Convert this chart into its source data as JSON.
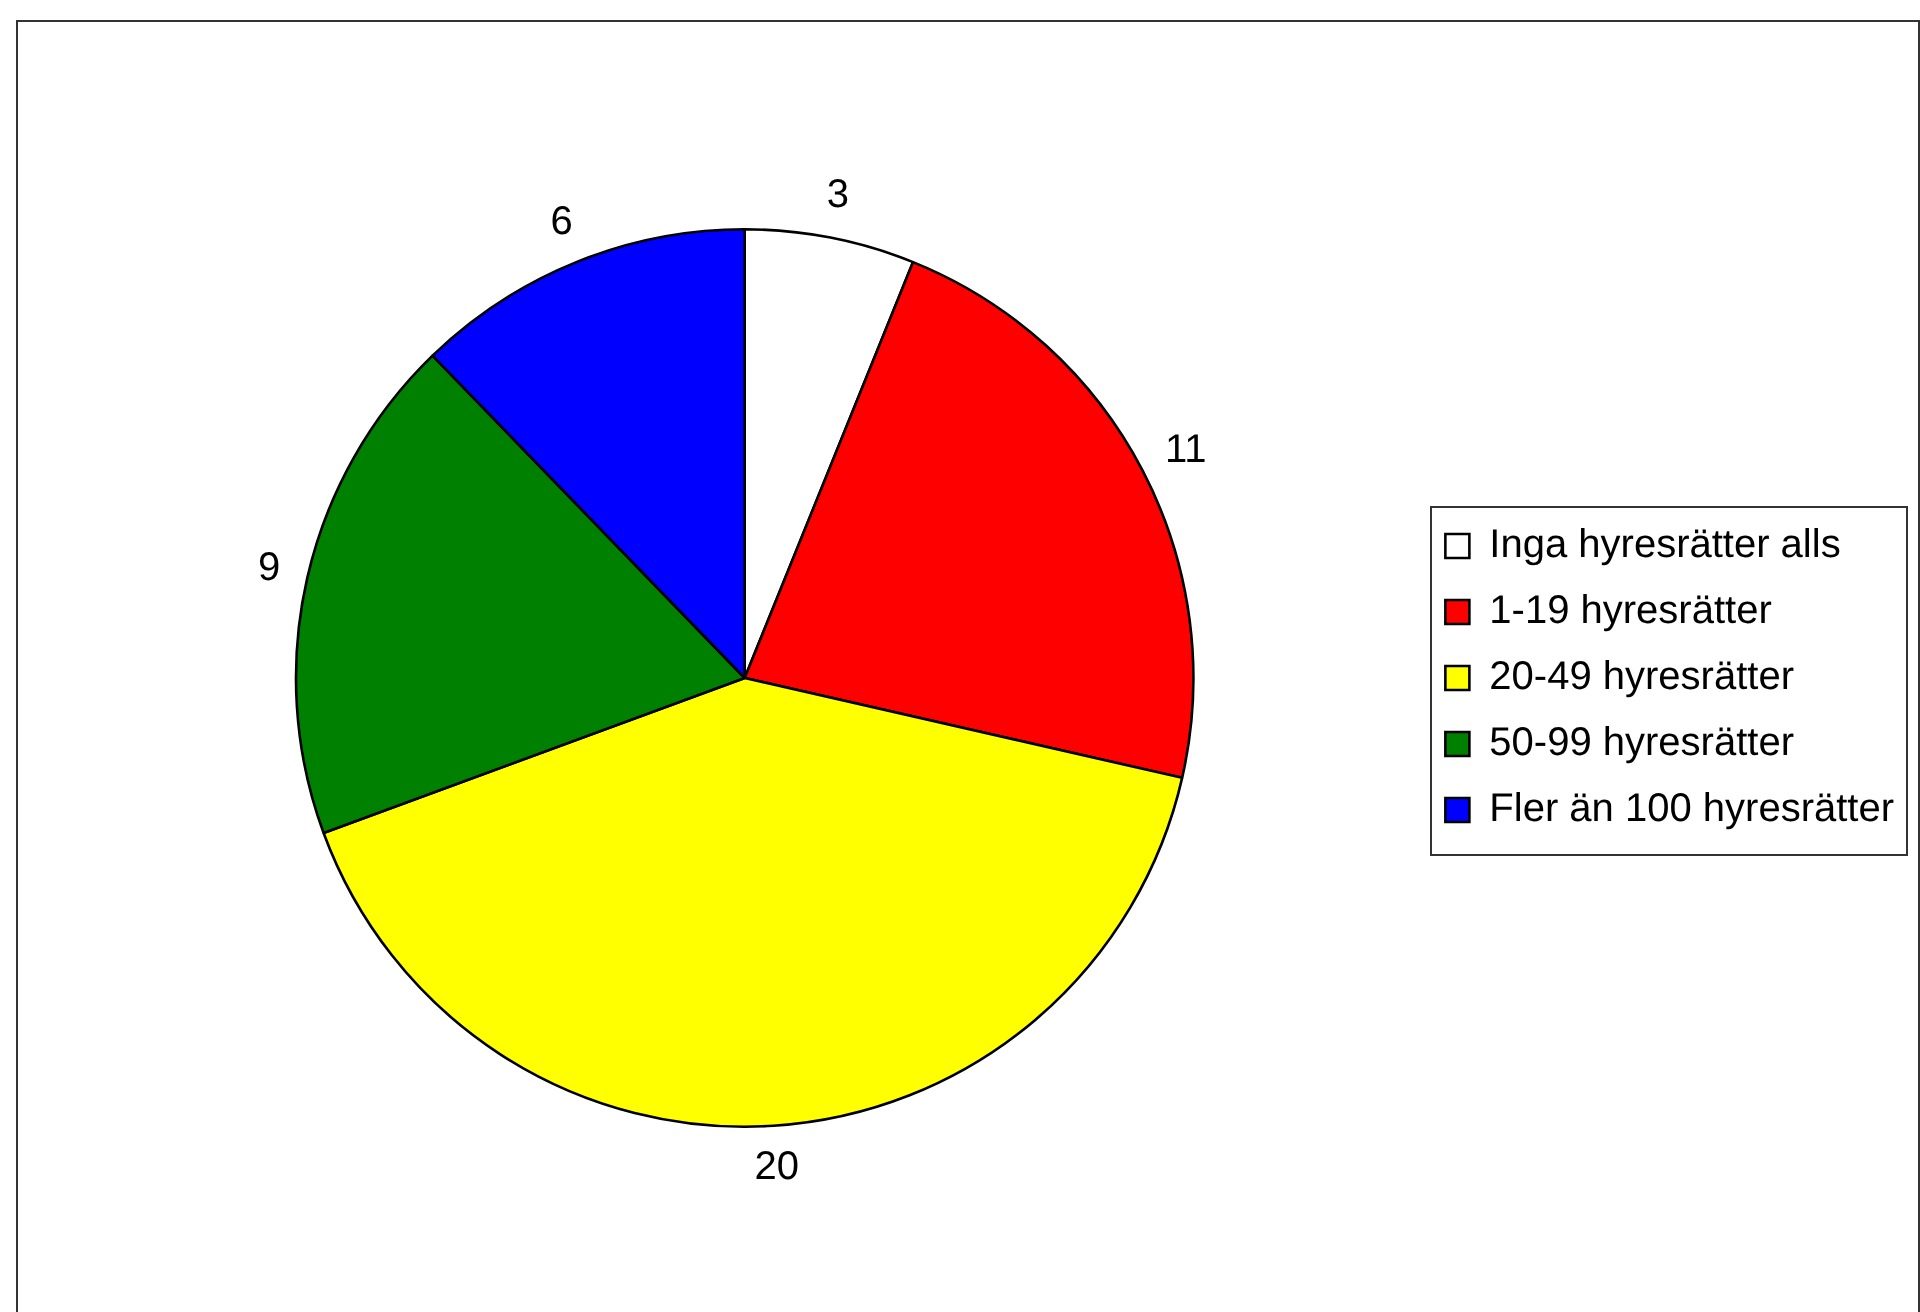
{
  "chart_data": {
    "type": "pie",
    "categories": [
      "Inga hyresrätter alls",
      "1-19 hyresrätter",
      "20-49 hyresrätter",
      "50-99 hyresrätter",
      "Fler än 100 hyresrätter"
    ],
    "values": [
      3,
      11,
      20,
      9,
      6
    ],
    "colors": [
      "#ffffff",
      "#ff0000",
      "#ffff00",
      "#008000",
      "#0000ff"
    ],
    "data_labels": true,
    "legend": "right"
  }
}
